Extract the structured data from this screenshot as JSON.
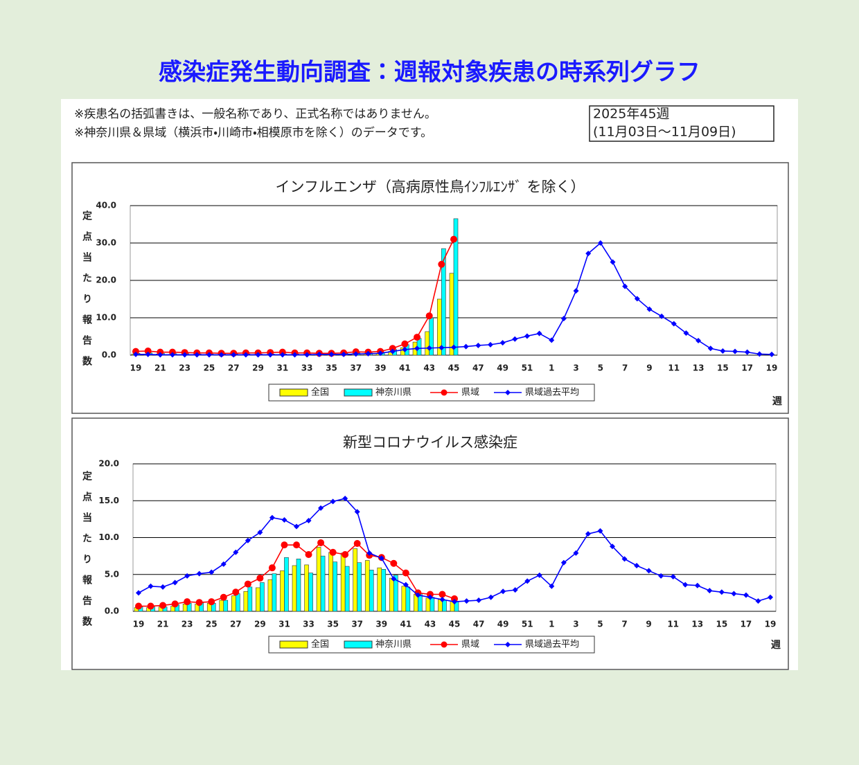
{
  "header": {
    "title": "感染症発生動向調査：週報対象疾患の時系列グラフ"
  },
  "notes": [
    "※疾患名の括弧書きは、一般名称であり、正式名称ではありません。",
    "※神奈川県＆県域（横浜市・川崎市・相模原市を除く）のデータです。"
  ],
  "period": {
    "week": "2025年45週",
    "range": "(11月03日～11月09日)"
  },
  "chart_data": [
    {
      "type": "combo",
      "title": "インフルエンザ（高病原性鳥ｲﾝﾌﾙｴﾝｻﾞ を除く）",
      "y_label": "定点当たり報告数",
      "x_label": "週",
      "categories": [
        "19",
        null,
        "21",
        null,
        "23",
        null,
        "25",
        null,
        "27",
        null,
        "29",
        null,
        "31",
        null,
        "33",
        null,
        "35",
        null,
        "37",
        null,
        "39",
        null,
        "41",
        null,
        "43",
        null,
        "45",
        null,
        "47",
        null,
        "49",
        null,
        "51",
        null,
        "1",
        null,
        "3",
        null,
        "5",
        null,
        "7",
        null,
        "9",
        null,
        "11",
        null,
        "13",
        null,
        "15",
        null,
        "17",
        null,
        "19"
      ],
      "ylim": [
        0,
        40
      ],
      "yticks": [
        {
          "value": 0,
          "label": "0.0"
        },
        {
          "value": 10,
          "label": "10.0"
        },
        {
          "value": 20,
          "label": "20.0"
        },
        {
          "value": 30,
          "label": "30.0"
        },
        {
          "value": 40,
          "label": "40.0"
        }
      ],
      "grid": true,
      "series": [
        {
          "name": "全国",
          "type": "bar",
          "color": "#ffff00",
          "values": [
            0.3,
            0.3,
            0.3,
            0.2,
            0.2,
            0.2,
            0.2,
            0.2,
            0.2,
            0.2,
            0.2,
            0.2,
            0.2,
            0.2,
            0.2,
            0.2,
            0.3,
            0.3,
            0.4,
            0.4,
            0.5,
            1.0,
            2.0,
            3.5,
            6.3,
            15.0,
            21.9,
            null,
            null,
            null,
            null,
            null,
            null,
            null,
            null,
            null,
            null,
            null,
            null,
            null,
            null,
            null,
            null,
            null,
            null,
            null,
            null,
            null,
            null,
            null,
            null,
            null,
            null
          ]
        },
        {
          "name": "神奈川県",
          "type": "bar",
          "color": "#00ffff",
          "values": [
            0.5,
            0.6,
            0.5,
            0.4,
            0.4,
            0.3,
            0.3,
            0.3,
            0.3,
            0.3,
            0.3,
            0.3,
            0.3,
            0.3,
            0.3,
            0.3,
            0.4,
            0.5,
            0.6,
            0.6,
            0.8,
            1.5,
            2.8,
            4.5,
            10.0,
            28.5,
            36.5,
            null,
            null,
            null,
            null,
            null,
            null,
            null,
            null,
            null,
            null,
            null,
            null,
            null,
            null,
            null,
            null,
            null,
            null,
            null,
            null,
            null,
            null,
            null,
            null,
            null,
            null
          ]
        },
        {
          "name": "県域",
          "type": "line",
          "marker": "circle",
          "color": "#ff0000",
          "values": [
            1.0,
            1.1,
            0.8,
            0.8,
            0.7,
            0.6,
            0.6,
            0.5,
            0.5,
            0.6,
            0.6,
            0.7,
            0.8,
            0.6,
            0.6,
            0.5,
            0.5,
            0.6,
            0.9,
            0.8,
            1.0,
            1.8,
            3.0,
            4.8,
            10.5,
            24.3,
            31.0,
            null,
            null,
            null,
            null,
            null,
            null,
            null,
            null,
            null,
            null,
            null,
            null,
            null,
            null,
            null,
            null,
            null,
            null,
            null,
            null,
            null,
            null,
            null,
            null,
            null,
            null
          ]
        },
        {
          "name": "県域過去平均",
          "type": "line",
          "marker": "diamond",
          "color": "#0000ff",
          "values": [
            0.2,
            0.2,
            0.1,
            0.1,
            0.1,
            0.1,
            0.1,
            0.1,
            0.1,
            0.1,
            0.1,
            0.1,
            0.1,
            0.1,
            0.1,
            0.2,
            0.2,
            0.2,
            0.3,
            0.4,
            0.5,
            1.0,
            1.5,
            1.8,
            1.9,
            2.0,
            2.1,
            2.3,
            2.6,
            2.8,
            3.3,
            4.3,
            5.1,
            5.8,
            4.0,
            9.8,
            17.2,
            27.2,
            30.0,
            24.9,
            18.4,
            15.1,
            12.3,
            10.4,
            8.4,
            5.9,
            3.9,
            1.8,
            1.1,
            1.0,
            0.8,
            0.3,
            0.2
          ]
        }
      ]
    },
    {
      "type": "combo",
      "title": "新型コロナウイルス感染症",
      "y_label": "定点当たり報告数",
      "x_label": "週",
      "categories": [
        "19",
        null,
        "21",
        null,
        "23",
        null,
        "25",
        null,
        "27",
        null,
        "29",
        null,
        "31",
        null,
        "33",
        null,
        "35",
        null,
        "37",
        null,
        "39",
        null,
        "41",
        null,
        "43",
        null,
        "45",
        null,
        "47",
        null,
        "49",
        null,
        "51",
        null,
        "1",
        null,
        "3",
        null,
        "5",
        null,
        "7",
        null,
        "9",
        null,
        "11",
        null,
        "13",
        null,
        "15",
        null,
        "17",
        null,
        "19"
      ],
      "ylim": [
        0,
        20
      ],
      "yticks": [
        {
          "value": 0,
          "label": "0.0"
        },
        {
          "value": 5,
          "label": "5.0"
        },
        {
          "value": 10,
          "label": "10.0"
        },
        {
          "value": 15,
          "label": "15.0"
        },
        {
          "value": 20,
          "label": "20.0"
        }
      ],
      "grid": true,
      "series": [
        {
          "name": "全国",
          "type": "bar",
          "color": "#ffff00",
          "values": [
            0.5,
            0.5,
            0.6,
            0.7,
            1.0,
            1.0,
            1.1,
            1.5,
            2.1,
            2.7,
            3.2,
            4.3,
            5.5,
            6.2,
            6.3,
            8.7,
            8.0,
            7.9,
            8.5,
            6.9,
            5.9,
            4.5,
            3.4,
            2.3,
            1.8,
            1.6,
            1.4,
            null,
            null,
            null,
            null,
            null,
            null,
            null,
            null,
            null,
            null,
            null,
            null,
            null,
            null,
            null,
            null,
            null,
            null,
            null,
            null,
            null,
            null,
            null,
            null,
            null,
            null
          ]
        },
        {
          "name": "神奈川県",
          "type": "bar",
          "color": "#00ffff",
          "values": [
            0.6,
            0.6,
            0.6,
            0.9,
            1.1,
            1.2,
            1.1,
            1.5,
            2.4,
            3.3,
            3.9,
            5.1,
            7.3,
            7.1,
            5.2,
            7.5,
            6.7,
            6.1,
            6.6,
            5.6,
            5.7,
            4.9,
            3.3,
            2.4,
            1.9,
            1.5,
            1.3,
            null,
            null,
            null,
            null,
            null,
            null,
            null,
            null,
            null,
            null,
            null,
            null,
            null,
            null,
            null,
            null,
            null,
            null,
            null,
            null,
            null,
            null,
            null,
            null,
            null,
            null
          ]
        },
        {
          "name": "県域",
          "type": "line",
          "marker": "circle",
          "color": "#ff0000",
          "values": [
            0.7,
            0.7,
            0.8,
            1.0,
            1.3,
            1.2,
            1.3,
            1.9,
            2.6,
            3.7,
            4.5,
            5.9,
            9.0,
            9.0,
            7.7,
            9.3,
            8.0,
            7.7,
            9.2,
            7.6,
            7.3,
            6.5,
            5.2,
            2.5,
            2.3,
            2.3,
            1.7,
            null,
            null,
            null,
            null,
            null,
            null,
            null,
            null,
            null,
            null,
            null,
            null,
            null,
            null,
            null,
            null,
            null,
            null,
            null,
            null,
            null,
            null,
            null,
            null,
            null,
            null
          ]
        },
        {
          "name": "県域過去平均",
          "type": "line",
          "marker": "diamond",
          "color": "#0000ff",
          "values": [
            2.5,
            3.4,
            3.3,
            3.9,
            4.8,
            5.1,
            5.3,
            6.4,
            8.0,
            9.6,
            10.7,
            12.7,
            12.4,
            11.5,
            12.3,
            14.0,
            14.9,
            15.3,
            13.5,
            7.9,
            7.2,
            4.4,
            3.6,
            2.2,
            1.9,
            1.6,
            1.3,
            1.4,
            1.5,
            1.9,
            2.7,
            2.9,
            4.1,
            4.9,
            3.4,
            6.6,
            7.9,
            10.5,
            10.9,
            8.8,
            7.1,
            6.2,
            5.5,
            4.8,
            4.7,
            3.6,
            3.5,
            2.8,
            2.6,
            2.4,
            2.2,
            1.4,
            1.9
          ]
        }
      ]
    }
  ]
}
